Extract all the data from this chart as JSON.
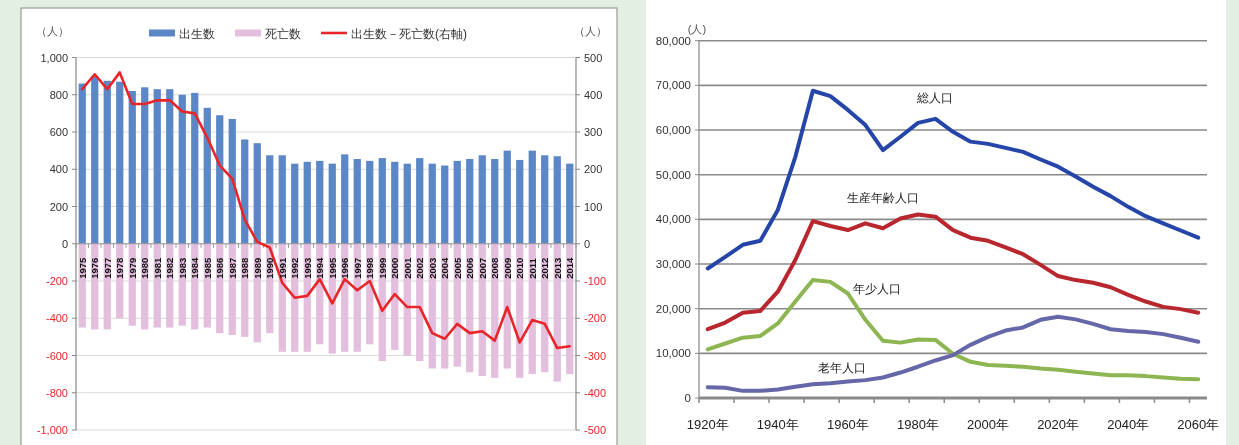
{
  "chart_data": [
    {
      "type": "bar",
      "stacked": true,
      "legend": "top",
      "grid": "y",
      "ylabel": "（人）",
      "y2label": "（人）",
      "categories": [
        "1975",
        "1976",
        "1977",
        "1978",
        "1979",
        "1980",
        "1981",
        "1982",
        "1983",
        "1984",
        "1985",
        "1986",
        "1987",
        "1988",
        "1989",
        "1990",
        "1991",
        "1992",
        "1993",
        "1994",
        "1995",
        "1996",
        "1997",
        "1998",
        "1999",
        "2000",
        "2001",
        "2002",
        "2003",
        "2004",
        "2005",
        "2006",
        "2007",
        "2008",
        "2009",
        "2010",
        "2011",
        "2012",
        "2013",
        "2014"
      ],
      "ylim": [
        -1000,
        1000
      ],
      "yticks": [
        {
          "value": -1000,
          "label": "-1,000"
        },
        -800,
        -600,
        -400,
        -200,
        0,
        200,
        400,
        600,
        800,
        {
          "value": 1000,
          "label": "1,000"
        }
      ],
      "y2lim": [
        -500,
        500
      ],
      "y2ticks": [
        -500,
        -400,
        -300,
        -200,
        -100,
        0,
        100,
        200,
        300,
        400,
        500
      ],
      "series": [
        {
          "name": "出生数",
          "color": "#5b87c6",
          "values": [
            860,
            900,
            875,
            870,
            820,
            840,
            830,
            830,
            800,
            810,
            730,
            690,
            670,
            560,
            540,
            475,
            475,
            430,
            440,
            445,
            430,
            480,
            455,
            445,
            460,
            440,
            430,
            460,
            430,
            420,
            445,
            455,
            475,
            455,
            500,
            450,
            500,
            475,
            470,
            430
          ]
        },
        {
          "name": "死亡数",
          "color": "#e3bedd",
          "values": [
            -450,
            -460,
            -460,
            -400,
            -440,
            -460,
            -450,
            -450,
            -440,
            -460,
            -450,
            -480,
            -490,
            -500,
            -530,
            -480,
            -580,
            -580,
            -580,
            -540,
            -590,
            -580,
            -580,
            -540,
            -630,
            -570,
            -600,
            -630,
            -670,
            -670,
            -660,
            -690,
            -710,
            -720,
            -670,
            -720,
            -700,
            -690,
            -740,
            -700
          ]
        },
        {
          "name": "出生数－死亡数(右軸)",
          "type": "line",
          "axis": "y2",
          "color": "#e8262a",
          "values": [
            415,
            455,
            415,
            460,
            375,
            375,
            385,
            385,
            355,
            350,
            285,
            210,
            175,
            65,
            5,
            -10,
            -105,
            -145,
            -140,
            -95,
            -160,
            -95,
            -125,
            -100,
            -180,
            -135,
            -170,
            -170,
            -240,
            -255,
            -215,
            -240,
            -235,
            -260,
            -170,
            -265,
            -205,
            -215,
            -280,
            -275
          ]
        }
      ]
    },
    {
      "type": "line",
      "legend": false,
      "grid": "y",
      "marker": "none",
      "ylabel": "(人)",
      "x": [
        1920,
        1925,
        1930,
        1935,
        1940,
        1945,
        1950,
        1955,
        1960,
        1965,
        1970,
        1975,
        1980,
        1985,
        1990,
        1995,
        2000,
        2005,
        2010,
        2015,
        2020,
        2025,
        2030,
        2035,
        2040,
        2045,
        2050,
        2055,
        2060
      ],
      "xlim": [
        1917.5,
        2062.5
      ],
      "xticks": [
        {
          "value": 1920,
          "label": "1920年"
        },
        {
          "value": 1940,
          "label": "1940年"
        },
        {
          "value": 1960,
          "label": "1960年"
        },
        {
          "value": 1980,
          "label": "1980年"
        },
        {
          "value": 2000,
          "label": "2000年"
        },
        {
          "value": 2020,
          "label": "2020年"
        },
        {
          "value": 2040,
          "label": "2040年"
        },
        {
          "value": 2060,
          "label": "2060年"
        },
        {
          "value": 1917.5,
          "label": null
        },
        {
          "value": 1927.5,
          "label": null
        },
        {
          "value": 1937.5,
          "label": null
        },
        {
          "value": 1947.5,
          "label": null
        },
        {
          "value": 1957.5,
          "label": null
        },
        {
          "value": 1967.5,
          "label": null
        },
        {
          "value": 1977.5,
          "label": null
        },
        {
          "value": 1987.5,
          "label": null
        },
        {
          "value": 1997.5,
          "label": null
        },
        {
          "value": 2007.5,
          "label": null
        },
        {
          "value": 2017.5,
          "label": null
        },
        {
          "value": 2027.5,
          "label": null
        },
        {
          "value": 2037.5,
          "label": null
        },
        {
          "value": 2047.5,
          "label": null
        },
        {
          "value": 2057.5,
          "label": null
        }
      ],
      "ylim": [
        0,
        80000
      ],
      "yticks": [
        0,
        {
          "value": 10000,
          "label": "10,000"
        },
        {
          "value": 20000,
          "label": "20,000"
        },
        {
          "value": 30000,
          "label": "30,000"
        },
        {
          "value": 40000,
          "label": "40,000"
        },
        {
          "value": 50000,
          "label": "50,000"
        },
        {
          "value": 60000,
          "label": "60,000"
        },
        {
          "value": 70000,
          "label": "70,000"
        },
        {
          "value": 80000,
          "label": "80,000"
        }
      ],
      "series": [
        {
          "name": "総人口",
          "color": "#2546a8",
          "values": [
            29000,
            31600,
            34300,
            35200,
            42100,
            54000,
            68800,
            67600,
            64500,
            61100,
            55500,
            58500,
            61600,
            62500,
            59600,
            57400,
            56900,
            56000,
            55100,
            53400,
            51800,
            49600,
            47300,
            45200,
            42800,
            40700,
            39100,
            37500,
            35900
          ]
        },
        {
          "name": "生産年齢人口",
          "color": "#b8262e",
          "values": [
            15400,
            16900,
            19100,
            19500,
            23800,
            30900,
            39600,
            38500,
            37600,
            39100,
            38000,
            40200,
            41100,
            40600,
            37600,
            35900,
            35200,
            33700,
            32200,
            29800,
            27300,
            26400,
            25800,
            24800,
            23100,
            21600,
            20400,
            19900,
            19100
          ]
        },
        {
          "name": "年少人口",
          "color": "#8db552",
          "values": [
            10900,
            12200,
            13500,
            13900,
            16700,
            21600,
            26400,
            26000,
            23400,
            17500,
            12800,
            12400,
            13100,
            13000,
            9900,
            8100,
            7400,
            7200,
            7000,
            6600,
            6300,
            5900,
            5500,
            5100,
            5100,
            4900,
            4600,
            4300,
            4200
          ]
        },
        {
          "name": "老年人口",
          "color": "#6667a8",
          "values": [
            2400,
            2300,
            1600,
            1600,
            1900,
            2500,
            3100,
            3300,
            3700,
            4000,
            4600,
            5700,
            7000,
            8400,
            9600,
            11900,
            13700,
            15100,
            15800,
            17500,
            18200,
            17600,
            16600,
            15400,
            15000,
            14800,
            14300,
            13500,
            12600
          ]
        }
      ]
    }
  ]
}
